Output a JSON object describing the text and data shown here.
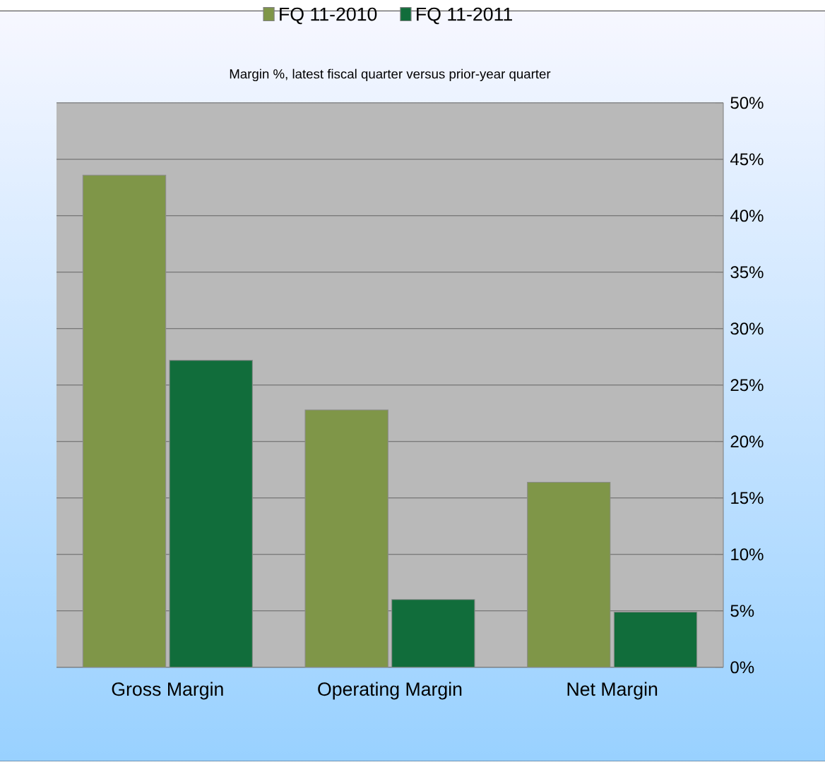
{
  "chart_data": {
    "type": "bar",
    "title": "Margin %,  latest fiscal quarter versus prior-year quarter",
    "categories": [
      "Gross Margin",
      "Operating Margin",
      "Net Margin"
    ],
    "series": [
      {
        "name": "FQ 11-2010",
        "color": "#7f9648",
        "values": [
          43.6,
          22.8,
          16.4
        ]
      },
      {
        "name": "FQ 11-2011",
        "color": "#116d3b",
        "values": [
          27.2,
          6.0,
          4.9
        ]
      }
    ],
    "ylim": [
      0,
      50
    ],
    "yticks": [
      {
        "value": 0,
        "label": "0%"
      },
      {
        "value": 5,
        "label": "5%"
      },
      {
        "value": 10,
        "label": "10%"
      },
      {
        "value": 15,
        "label": "15%"
      },
      {
        "value": 20,
        "label": "20%"
      },
      {
        "value": 25,
        "label": "25%"
      },
      {
        "value": 30,
        "label": "30%"
      },
      {
        "value": 35,
        "label": "35%"
      },
      {
        "value": 40,
        "label": "40%"
      },
      {
        "value": 45,
        "label": "45%"
      },
      {
        "value": 50,
        "label": "50%"
      }
    ],
    "grid": "y",
    "legend": "top"
  }
}
